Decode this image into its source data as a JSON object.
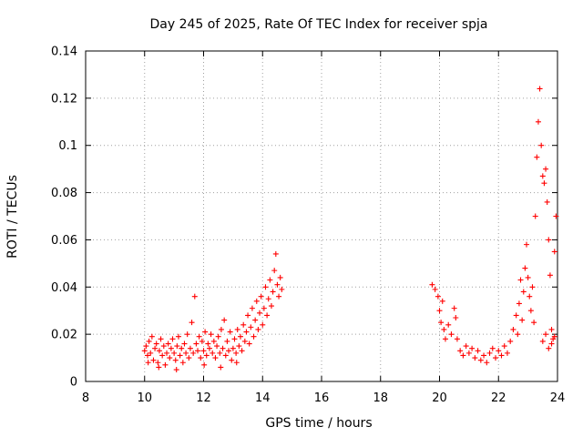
{
  "chart_data": {
    "type": "scatter",
    "title": "Day 245 of 2025, Rate Of TEC Index for receiver spja",
    "xlabel": "GPS time / hours",
    "ylabel": "ROTI / TECUs",
    "xlim": [
      8,
      24
    ],
    "ylim": [
      0,
      0.14
    ],
    "x_ticks": [
      8,
      10,
      12,
      14,
      16,
      18,
      20,
      22,
      24
    ],
    "x_tick_labels": [
      "8",
      "10",
      "12",
      "14",
      "16",
      "18",
      "20",
      "22",
      "24"
    ],
    "y_ticks": [
      0,
      0.02,
      0.04,
      0.06,
      0.08,
      0.1,
      0.12,
      0.14
    ],
    "y_tick_labels": [
      "0",
      "0.02",
      "0.04",
      "0.06",
      "0.08",
      "0.1",
      "0.12",
      "0.14"
    ],
    "grid": true,
    "marker": "+",
    "color": "#ff0000",
    "series": [
      {
        "points": [
          [
            10.0,
            0.013
          ],
          [
            10.05,
            0.015
          ],
          [
            10.1,
            0.011
          ],
          [
            10.15,
            0.017
          ],
          [
            10.2,
            0.012
          ],
          [
            10.25,
            0.019
          ],
          [
            10.3,
            0.009
          ],
          [
            10.35,
            0.014
          ],
          [
            10.4,
            0.016
          ],
          [
            10.45,
            0.008
          ],
          [
            10.5,
            0.013
          ],
          [
            10.55,
            0.018
          ],
          [
            10.6,
            0.011
          ],
          [
            10.65,
            0.015
          ],
          [
            10.7,
            0.007
          ],
          [
            10.75,
            0.012
          ],
          [
            10.8,
            0.016
          ],
          [
            10.85,
            0.01
          ],
          [
            10.9,
            0.014
          ],
          [
            10.95,
            0.018
          ],
          [
            11.0,
            0.012
          ],
          [
            11.05,
            0.009
          ],
          [
            11.1,
            0.015
          ],
          [
            11.15,
            0.019
          ],
          [
            11.2,
            0.011
          ],
          [
            11.25,
            0.014
          ],
          [
            11.3,
            0.008
          ],
          [
            11.35,
            0.016
          ],
          [
            11.4,
            0.012
          ],
          [
            11.45,
            0.02
          ],
          [
            11.5,
            0.01
          ],
          [
            11.55,
            0.014
          ],
          [
            11.6,
            0.025
          ],
          [
            11.65,
            0.012
          ],
          [
            11.7,
            0.036
          ],
          [
            11.75,
            0.016
          ],
          [
            11.8,
            0.013
          ],
          [
            11.85,
            0.019
          ],
          [
            11.9,
            0.01
          ],
          [
            11.95,
            0.017
          ],
          [
            12.0,
            0.013
          ],
          [
            12.05,
            0.021
          ],
          [
            12.1,
            0.011
          ],
          [
            12.15,
            0.016
          ],
          [
            12.2,
            0.014
          ],
          [
            12.25,
            0.02
          ],
          [
            12.3,
            0.012
          ],
          [
            12.35,
            0.017
          ],
          [
            12.4,
            0.01
          ],
          [
            12.45,
            0.015
          ],
          [
            12.5,
            0.019
          ],
          [
            12.55,
            0.012
          ],
          [
            12.6,
            0.022
          ],
          [
            12.65,
            0.014
          ],
          [
            12.7,
            0.026
          ],
          [
            12.75,
            0.011
          ],
          [
            12.8,
            0.017
          ],
          [
            12.85,
            0.013
          ],
          [
            12.9,
            0.021
          ],
          [
            12.95,
            0.009
          ],
          [
            13.0,
            0.014
          ],
          [
            13.05,
            0.018
          ],
          [
            13.1,
            0.012
          ],
          [
            13.15,
            0.022
          ],
          [
            13.2,
            0.015
          ],
          [
            13.25,
            0.019
          ],
          [
            13.3,
            0.013
          ],
          [
            13.35,
            0.024
          ],
          [
            13.4,
            0.017
          ],
          [
            13.45,
            0.021
          ],
          [
            13.5,
            0.028
          ],
          [
            13.55,
            0.016
          ],
          [
            13.6,
            0.023
          ],
          [
            13.65,
            0.031
          ],
          [
            13.7,
            0.019
          ],
          [
            13.75,
            0.026
          ],
          [
            13.8,
            0.034
          ],
          [
            13.85,
            0.022
          ],
          [
            13.9,
            0.029
          ],
          [
            13.95,
            0.036
          ],
          [
            14.0,
            0.024
          ],
          [
            14.05,
            0.031
          ],
          [
            14.1,
            0.04
          ],
          [
            14.15,
            0.028
          ],
          [
            14.2,
            0.035
          ],
          [
            14.25,
            0.043
          ],
          [
            14.3,
            0.032
          ],
          [
            14.35,
            0.038
          ],
          [
            14.4,
            0.047
          ],
          [
            14.45,
            0.054
          ],
          [
            14.5,
            0.041
          ],
          [
            14.55,
            0.036
          ],
          [
            14.6,
            0.044
          ],
          [
            14.65,
            0.039
          ],
          [
            10.12,
            0.008
          ],
          [
            10.48,
            0.006
          ],
          [
            11.08,
            0.005
          ],
          [
            12.02,
            0.007
          ],
          [
            12.58,
            0.006
          ],
          [
            13.12,
            0.008
          ],
          [
            19.75,
            0.041
          ],
          [
            19.85,
            0.039
          ],
          [
            19.95,
            0.036
          ],
          [
            20.0,
            0.03
          ],
          [
            20.05,
            0.025
          ],
          [
            20.1,
            0.034
          ],
          [
            20.15,
            0.022
          ],
          [
            20.2,
            0.018
          ],
          [
            20.3,
            0.024
          ],
          [
            20.4,
            0.02
          ],
          [
            20.5,
            0.031
          ],
          [
            20.55,
            0.027
          ],
          [
            20.6,
            0.018
          ],
          [
            20.7,
            0.013
          ],
          [
            20.8,
            0.011
          ],
          [
            20.9,
            0.015
          ],
          [
            21.0,
            0.012
          ],
          [
            21.1,
            0.014
          ],
          [
            21.2,
            0.01
          ],
          [
            21.3,
            0.013
          ],
          [
            21.4,
            0.009
          ],
          [
            21.5,
            0.011
          ],
          [
            21.6,
            0.008
          ],
          [
            21.7,
            0.012
          ],
          [
            21.8,
            0.014
          ],
          [
            21.9,
            0.01
          ],
          [
            22.0,
            0.013
          ],
          [
            22.1,
            0.011
          ],
          [
            22.2,
            0.015
          ],
          [
            22.3,
            0.012
          ],
          [
            22.4,
            0.017
          ],
          [
            22.5,
            0.022
          ],
          [
            22.6,
            0.028
          ],
          [
            22.65,
            0.02
          ],
          [
            22.7,
            0.033
          ],
          [
            22.75,
            0.043
          ],
          [
            22.8,
            0.026
          ],
          [
            22.85,
            0.038
          ],
          [
            22.9,
            0.048
          ],
          [
            22.95,
            0.058
          ],
          [
            23.0,
            0.044
          ],
          [
            23.05,
            0.036
          ],
          [
            23.1,
            0.03
          ],
          [
            23.15,
            0.04
          ],
          [
            23.2,
            0.025
          ],
          [
            23.25,
            0.07
          ],
          [
            23.3,
            0.095
          ],
          [
            23.35,
            0.11
          ],
          [
            23.4,
            0.124
          ],
          [
            23.45,
            0.1
          ],
          [
            23.5,
            0.087
          ],
          [
            23.55,
            0.084
          ],
          [
            23.6,
            0.09
          ],
          [
            23.65,
            0.076
          ],
          [
            23.7,
            0.06
          ],
          [
            23.75,
            0.045
          ],
          [
            23.8,
            0.022
          ],
          [
            23.85,
            0.018
          ],
          [
            23.9,
            0.055
          ],
          [
            23.95,
            0.07
          ],
          [
            23.6,
            0.02
          ],
          [
            23.7,
            0.014
          ],
          [
            23.8,
            0.016
          ],
          [
            23.9,
            0.019
          ],
          [
            23.5,
            0.017
          ]
        ]
      }
    ]
  }
}
